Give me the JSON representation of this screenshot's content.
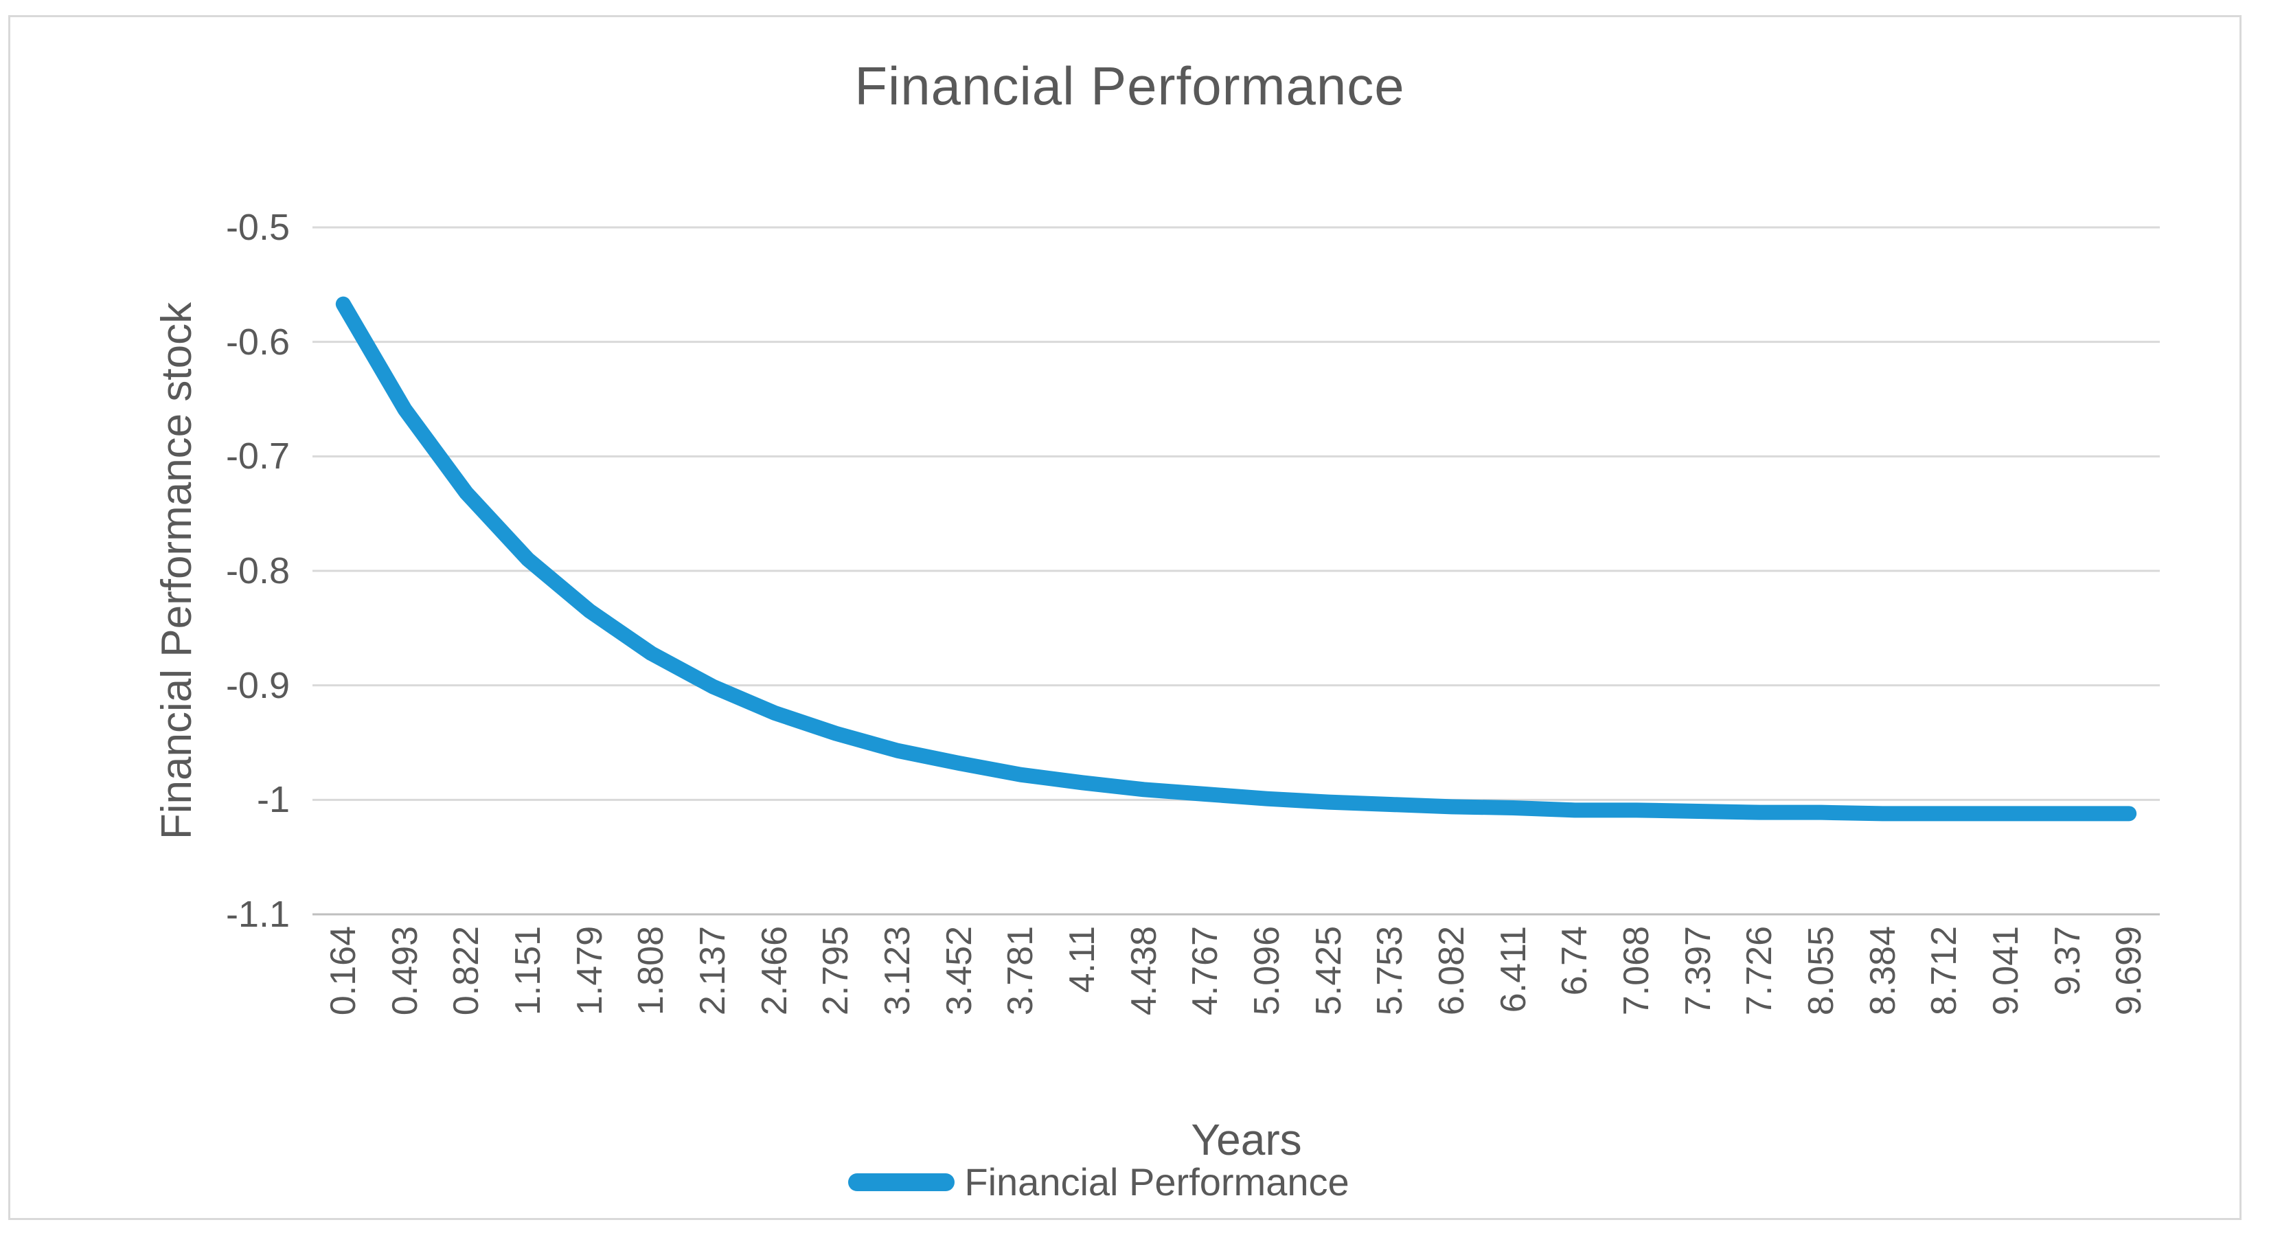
{
  "chart": {
    "title": "Financial Performance",
    "y_axis": {
      "title": "Financial Performance stock"
    },
    "x_axis": {
      "title": "Years"
    },
    "legend": {
      "label": "Financial Performance"
    },
    "colors": {
      "line": "#1C96D5",
      "gridline": "#d9d9d9",
      "axis_line": "#bfbfbf",
      "text": "#595959",
      "frame_border": "#d9d9d9"
    }
  },
  "chart_data": {
    "type": "line",
    "title": "Financial Performance",
    "xlabel": "Years",
    "ylabel": "Financial Performance stock",
    "categories": [
      "0.164",
      "0.493",
      "0.822",
      "1.151",
      "1.479",
      "1.808",
      "2.137",
      "2.466",
      "2.795",
      "3.123",
      "3.452",
      "3.781",
      "4.11",
      "4.438",
      "4.767",
      "5.096",
      "5.425",
      "5.753",
      "6.082",
      "6.411",
      "6.74",
      "7.068",
      "7.397",
      "7.726",
      "8.055",
      "8.384",
      "8.712",
      "9.041",
      "9.37",
      "9.699"
    ],
    "series": [
      {
        "name": "Financial Performance",
        "values": [
          -0.567,
          -0.659,
          -0.732,
          -0.79,
          -0.835,
          -0.872,
          -0.901,
          -0.924,
          -0.942,
          -0.957,
          -0.968,
          -0.978,
          -0.985,
          -0.991,
          -0.995,
          -0.999,
          -1.002,
          -1.004,
          -1.006,
          -1.007,
          -1.009,
          -1.009,
          -1.01,
          -1.011,
          -1.011,
          -1.012,
          -1.012,
          -1.012,
          -1.012,
          -1.012
        ]
      }
    ],
    "ylim": [
      -1.1,
      -0.5
    ],
    "y_ticks": [
      -0.5,
      -0.6,
      -0.7,
      -0.8,
      -0.9,
      -1,
      -1.1
    ],
    "grid": true,
    "legend_position": "bottom"
  }
}
